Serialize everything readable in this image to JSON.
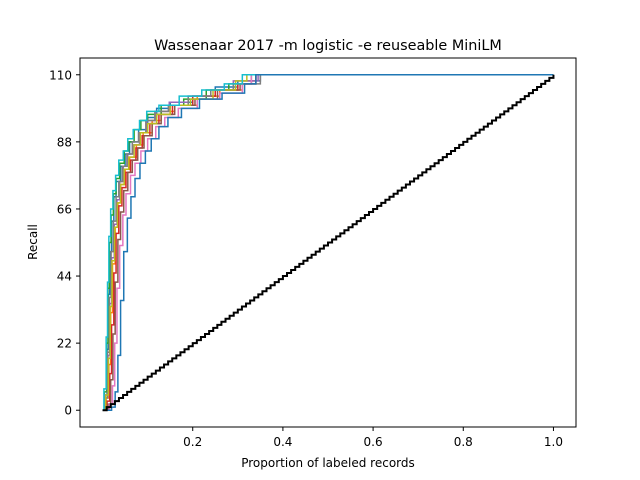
{
  "chart_data": {
    "type": "line",
    "title": "Wassenaar 2017 -m logistic -e reuseable MiniLM",
    "xlabel": "Proportion of labeled records",
    "ylabel": "Recall",
    "xlim": [
      -0.05,
      1.05
    ],
    "ylim": [
      -5.5,
      115.5
    ],
    "x_ticks": [
      {
        "value": 0.2,
        "label": "0.2"
      },
      {
        "value": 0.4,
        "label": "0.4"
      },
      {
        "value": 0.6,
        "label": "0.6"
      },
      {
        "value": 0.8,
        "label": "0.8"
      },
      {
        "value": 1.0,
        "label": "1.0"
      }
    ],
    "y_ticks": [
      {
        "value": 0,
        "label": "0"
      },
      {
        "value": 22,
        "label": "22"
      },
      {
        "value": 44,
        "label": "44"
      },
      {
        "value": 66,
        "label": "66"
      },
      {
        "value": 88,
        "label": "88"
      },
      {
        "value": 110,
        "label": "110"
      }
    ],
    "grid": false,
    "legend": "none",
    "random_baseline": {
      "color": "#000000",
      "x": [
        0.0,
        1.0
      ],
      "y": [
        0,
        110
      ]
    },
    "series": [
      {
        "color": "#1f77b4",
        "x": [
          0,
          0.005,
          0.01,
          0.013,
          0.016,
          0.02,
          0.025,
          0.03,
          0.04,
          0.05,
          0.06,
          0.08,
          0.1,
          0.12,
          0.15,
          0.2,
          0.25,
          0.3,
          0.35,
          1.0
        ],
        "y": [
          0,
          5,
          20,
          38,
          52,
          62,
          70,
          75,
          80,
          84,
          88,
          92,
          96,
          99,
          101,
          103,
          106,
          108,
          110,
          110
        ]
      },
      {
        "color": "#ff7f0e",
        "x": [
          0,
          0.008,
          0.014,
          0.018,
          0.022,
          0.028,
          0.034,
          0.04,
          0.05,
          0.06,
          0.075,
          0.09,
          0.11,
          0.13,
          0.16,
          0.21,
          0.26,
          0.31,
          0.34,
          1.0
        ],
        "y": [
          0,
          4,
          15,
          32,
          48,
          60,
          68,
          74,
          79,
          83,
          87,
          91,
          95,
          98,
          100,
          103,
          105,
          108,
          110,
          110
        ]
      },
      {
        "color": "#2ca02c",
        "x": [
          0,
          0.004,
          0.009,
          0.012,
          0.015,
          0.019,
          0.024,
          0.03,
          0.038,
          0.048,
          0.058,
          0.07,
          0.085,
          0.1,
          0.13,
          0.18,
          0.23,
          0.28,
          0.33,
          1.0
        ],
        "y": [
          0,
          6,
          22,
          40,
          55,
          64,
          71,
          76,
          81,
          85,
          88,
          92,
          95,
          97,
          100,
          102,
          105,
          107,
          110,
          110
        ]
      },
      {
        "color": "#d62728",
        "x": [
          0,
          0.01,
          0.016,
          0.02,
          0.025,
          0.03,
          0.036,
          0.043,
          0.052,
          0.062,
          0.074,
          0.088,
          0.105,
          0.125,
          0.155,
          0.2,
          0.25,
          0.3,
          0.34,
          1.0
        ],
        "y": [
          0,
          3,
          12,
          28,
          45,
          58,
          67,
          73,
          78,
          82,
          86,
          90,
          94,
          97,
          100,
          103,
          105,
          107,
          110,
          110
        ]
      },
      {
        "color": "#9467bd",
        "x": [
          0,
          0.006,
          0.012,
          0.016,
          0.02,
          0.026,
          0.032,
          0.038,
          0.046,
          0.056,
          0.068,
          0.082,
          0.098,
          0.118,
          0.148,
          0.19,
          0.24,
          0.29,
          0.345,
          1.0
        ],
        "y": [
          0,
          5,
          18,
          35,
          50,
          61,
          69,
          75,
          80,
          84,
          87,
          91,
          95,
          98,
          101,
          103,
          105,
          108,
          110,
          110
        ]
      },
      {
        "color": "#8c564b",
        "x": [
          0,
          0.012,
          0.018,
          0.023,
          0.028,
          0.034,
          0.04,
          0.047,
          0.056,
          0.066,
          0.078,
          0.092,
          0.11,
          0.13,
          0.16,
          0.205,
          0.255,
          0.305,
          0.34,
          1.0
        ],
        "y": [
          0,
          2,
          10,
          25,
          42,
          56,
          65,
          72,
          78,
          82,
          86,
          90,
          94,
          97,
          100,
          102,
          105,
          107,
          110,
          110
        ]
      },
      {
        "color": "#e377c2",
        "x": [
          0,
          0.015,
          0.022,
          0.027,
          0.032,
          0.038,
          0.045,
          0.052,
          0.062,
          0.072,
          0.085,
          0.1,
          0.118,
          0.138,
          0.168,
          0.21,
          0.26,
          0.31,
          0.33,
          1.0
        ],
        "y": [
          0,
          2,
          8,
          22,
          40,
          54,
          64,
          71,
          77,
          81,
          85,
          89,
          93,
          96,
          99,
          102,
          104,
          107,
          110,
          110
        ]
      },
      {
        "color": "#7f7f7f",
        "x": [
          0,
          0.005,
          0.011,
          0.015,
          0.019,
          0.024,
          0.03,
          0.036,
          0.044,
          0.054,
          0.066,
          0.08,
          0.096,
          0.116,
          0.146,
          0.19,
          0.24,
          0.29,
          0.35,
          1.0
        ],
        "y": [
          0,
          4,
          19,
          37,
          52,
          62,
          70,
          75,
          80,
          84,
          88,
          91,
          95,
          98,
          100,
          103,
          105,
          107,
          110,
          110
        ]
      },
      {
        "color": "#bcbd22",
        "x": [
          0,
          0.007,
          0.013,
          0.017,
          0.021,
          0.027,
          0.033,
          0.04,
          0.048,
          0.058,
          0.07,
          0.084,
          0.1,
          0.12,
          0.15,
          0.195,
          0.245,
          0.295,
          0.32,
          1.0
        ],
        "y": [
          0,
          5,
          17,
          34,
          49,
          60,
          68,
          74,
          79,
          83,
          87,
          91,
          94,
          97,
          100,
          102,
          105,
          108,
          110,
          110
        ]
      },
      {
        "color": "#17becf",
        "x": [
          0,
          0.003,
          0.008,
          0.011,
          0.014,
          0.018,
          0.023,
          0.029,
          0.036,
          0.046,
          0.056,
          0.068,
          0.082,
          0.098,
          0.125,
          0.17,
          0.22,
          0.27,
          0.31,
          1.0
        ],
        "y": [
          0,
          7,
          24,
          42,
          57,
          66,
          72,
          77,
          82,
          85,
          89,
          92,
          95,
          98,
          100,
          103,
          105,
          107,
          110,
          110
        ]
      },
      {
        "color": "#1f77b4",
        "x": [
          0,
          0.02,
          0.028,
          0.034,
          0.04,
          0.047,
          0.055,
          0.063,
          0.072,
          0.083,
          0.095,
          0.108,
          0.125,
          0.145,
          0.175,
          0.215,
          0.265,
          0.315,
          0.34,
          1.0
        ],
        "y": [
          0,
          1,
          6,
          18,
          36,
          52,
          63,
          70,
          76,
          81,
          85,
          89,
          93,
          96,
          99,
          102,
          104,
          107,
          110,
          110
        ]
      }
    ]
  }
}
